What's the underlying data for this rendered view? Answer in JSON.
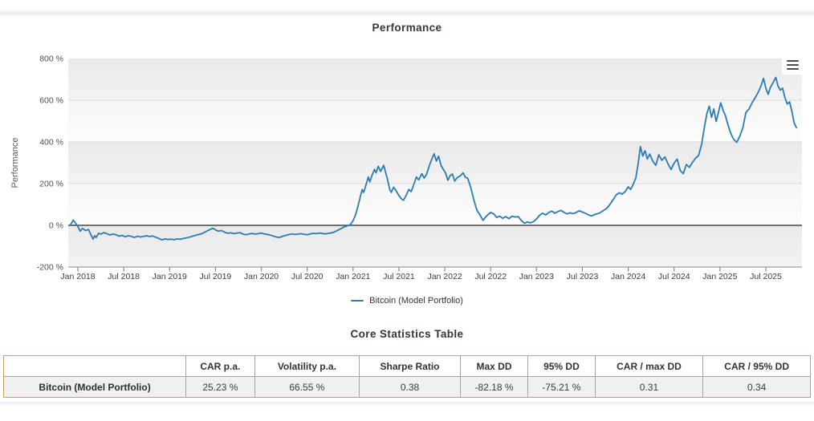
{
  "page": {
    "chart_title": "Performance",
    "table_title": "Core Statistics Table"
  },
  "chart": {
    "y_axis_title": "Performance",
    "legend": [
      {
        "label": "Bitcoin (Model Portfolio)",
        "color": "#2b7cb5"
      }
    ],
    "colors": {
      "line": "#2b7cb5",
      "band_dark_top": "#e9e9e9",
      "band_dark_bottom": "#f3f3f3",
      "band_light_top": "#f6f6f6",
      "band_light_bottom": "#fcfcfc",
      "grid": "#d9d9d9",
      "zero_line": "#454545",
      "axis_line": "#a0a0a0",
      "tick": "#8a8a8a",
      "label": "#4d4d4d"
    }
  },
  "chart_data": {
    "type": "line",
    "title": "Performance",
    "xlabel": "",
    "ylabel": "Performance",
    "ylim": [
      -200,
      800
    ],
    "grid": true,
    "legend_position": "bottom-center",
    "y_ticks": [
      {
        "value": 800,
        "label": "800 %"
      },
      {
        "value": 600,
        "label": "600 %"
      },
      {
        "value": 400,
        "label": "400 %"
      },
      {
        "value": 200,
        "label": "200 %"
      },
      {
        "value": 0,
        "label": "0 %"
      },
      {
        "value": -200,
        "label": "-200 %"
      }
    ],
    "x_ticks": [
      {
        "t": 1,
        "label": "Jan 2018"
      },
      {
        "t": 7,
        "label": "Jul 2018"
      },
      {
        "t": 13,
        "label": "Jan 2019"
      },
      {
        "t": 19,
        "label": "Jul 2019"
      },
      {
        "t": 25,
        "label": "Jan 2020"
      },
      {
        "t": 31,
        "label": "Jul 2020"
      },
      {
        "t": 37,
        "label": "Jan 2021"
      },
      {
        "t": 43,
        "label": "Jul 2021"
      },
      {
        "t": 49,
        "label": "Jan 2022"
      },
      {
        "t": 55,
        "label": "Jul 2022"
      },
      {
        "t": 61,
        "label": "Jan 2023"
      },
      {
        "t": 67,
        "label": "Jul 2023"
      },
      {
        "t": 73,
        "label": "Jan 2024"
      },
      {
        "t": 79,
        "label": "Jul 2024"
      },
      {
        "t": 85,
        "label": "Jan 2025"
      },
      {
        "t": 91,
        "label": "Jul 2025"
      }
    ],
    "series": [
      {
        "name": "Bitcoin (Model Portfolio)",
        "color": "#2b7cb5",
        "points": [
          [
            0,
            0
          ],
          [
            0.4,
            25
          ],
          [
            0.7,
            10
          ],
          [
            1,
            -5
          ],
          [
            1.3,
            -28
          ],
          [
            1.6,
            -15
          ],
          [
            2,
            -25
          ],
          [
            2.4,
            -20
          ],
          [
            2.7,
            -45
          ],
          [
            3,
            -66
          ],
          [
            3.2,
            -50
          ],
          [
            3.4,
            -58
          ],
          [
            3.7,
            -38
          ],
          [
            4,
            -42
          ],
          [
            4.4,
            -35
          ],
          [
            4.8,
            -40
          ],
          [
            5.2,
            -46
          ],
          [
            5.6,
            -42
          ],
          [
            6,
            -45
          ],
          [
            6.4,
            -52
          ],
          [
            6.8,
            -48
          ],
          [
            7.2,
            -55
          ],
          [
            7.6,
            -50
          ],
          [
            8,
            -53
          ],
          [
            8.4,
            -58
          ],
          [
            8.8,
            -52
          ],
          [
            9.2,
            -56
          ],
          [
            9.6,
            -53
          ],
          [
            10,
            -50
          ],
          [
            10.4,
            -54
          ],
          [
            10.8,
            -51
          ],
          [
            11.2,
            -57
          ],
          [
            11.6,
            -63
          ],
          [
            12,
            -70
          ],
          [
            12.4,
            -65
          ],
          [
            12.8,
            -68
          ],
          [
            13.2,
            -66
          ],
          [
            13.6,
            -69
          ],
          [
            14,
            -65
          ],
          [
            14.4,
            -67
          ],
          [
            14.8,
            -63
          ],
          [
            15.2,
            -60
          ],
          [
            15.6,
            -57
          ],
          [
            16,
            -52
          ],
          [
            16.4,
            -48
          ],
          [
            16.8,
            -44
          ],
          [
            17.2,
            -40
          ],
          [
            17.6,
            -33
          ],
          [
            18,
            -25
          ],
          [
            18.4,
            -18
          ],
          [
            18.7,
            -14
          ],
          [
            19,
            -22
          ],
          [
            19.4,
            -28
          ],
          [
            19.8,
            -25
          ],
          [
            20.2,
            -33
          ],
          [
            20.6,
            -38
          ],
          [
            21,
            -36
          ],
          [
            21.4,
            -40
          ],
          [
            21.8,
            -37
          ],
          [
            22.2,
            -35
          ],
          [
            22.6,
            -42
          ],
          [
            23,
            -45
          ],
          [
            23.4,
            -41
          ],
          [
            23.8,
            -39
          ],
          [
            24.2,
            -42
          ],
          [
            24.6,
            -40
          ],
          [
            25,
            -37
          ],
          [
            25.4,
            -41
          ],
          [
            25.8,
            -44
          ],
          [
            26.2,
            -47
          ],
          [
            26.6,
            -52
          ],
          [
            27,
            -56
          ],
          [
            27.4,
            -58
          ],
          [
            27.8,
            -52
          ],
          [
            28.2,
            -48
          ],
          [
            28.6,
            -44
          ],
          [
            29,
            -41
          ],
          [
            29.4,
            -44
          ],
          [
            29.8,
            -42
          ],
          [
            30.2,
            -40
          ],
          [
            30.6,
            -43
          ],
          [
            31,
            -45
          ],
          [
            31.4,
            -41
          ],
          [
            31.8,
            -38
          ],
          [
            32.2,
            -40
          ],
          [
            32.6,
            -37
          ],
          [
            33,
            -39
          ],
          [
            33.4,
            -41
          ],
          [
            33.8,
            -38
          ],
          [
            34.2,
            -36
          ],
          [
            34.6,
            -31
          ],
          [
            35,
            -24
          ],
          [
            35.4,
            -16
          ],
          [
            35.8,
            -8
          ],
          [
            36.2,
            -3
          ],
          [
            36.6,
            2
          ],
          [
            37,
            22
          ],
          [
            37.3,
            48
          ],
          [
            37.6,
            85
          ],
          [
            38,
            145
          ],
          [
            38.2,
            172
          ],
          [
            38.4,
            158
          ],
          [
            38.7,
            195
          ],
          [
            39,
            232
          ],
          [
            39.2,
            208
          ],
          [
            39.5,
            242
          ],
          [
            39.8,
            268
          ],
          [
            40,
            252
          ],
          [
            40.3,
            283
          ],
          [
            40.6,
            258
          ],
          [
            41,
            288
          ],
          [
            41.2,
            262
          ],
          [
            41.5,
            222
          ],
          [
            41.8,
            172
          ],
          [
            42,
            158
          ],
          [
            42.3,
            183
          ],
          [
            42.6,
            168
          ],
          [
            43,
            143
          ],
          [
            43.3,
            128
          ],
          [
            43.6,
            120
          ],
          [
            44,
            148
          ],
          [
            44.3,
            172
          ],
          [
            44.6,
            162
          ],
          [
            45,
            202
          ],
          [
            45.3,
            232
          ],
          [
            45.6,
            218
          ],
          [
            46,
            248
          ],
          [
            46.3,
            226
          ],
          [
            46.6,
            243
          ],
          [
            47,
            288
          ],
          [
            47.3,
            318
          ],
          [
            47.6,
            343
          ],
          [
            47.9,
            308
          ],
          [
            48.2,
            332
          ],
          [
            48.5,
            288
          ],
          [
            48.8,
            268
          ],
          [
            49.1,
            252
          ],
          [
            49.4,
            216
          ],
          [
            49.7,
            238
          ],
          [
            50,
            246
          ],
          [
            50.3,
            212
          ],
          [
            50.6,
            228
          ],
          [
            51,
            236
          ],
          [
            51.4,
            252
          ],
          [
            51.7,
            230
          ],
          [
            52,
            226
          ],
          [
            52.4,
            182
          ],
          [
            52.8,
            122
          ],
          [
            53.2,
            72
          ],
          [
            53.6,
            50
          ],
          [
            54,
            24
          ],
          [
            54.3,
            38
          ],
          [
            54.6,
            50
          ],
          [
            55,
            62
          ],
          [
            55.4,
            55
          ],
          [
            55.8,
            38
          ],
          [
            56.2,
            44
          ],
          [
            56.6,
            34
          ],
          [
            57,
            42
          ],
          [
            57.4,
            32
          ],
          [
            57.8,
            44
          ],
          [
            58.2,
            40
          ],
          [
            58.6,
            42
          ],
          [
            59,
            24
          ],
          [
            59.4,
            10
          ],
          [
            59.8,
            16
          ],
          [
            60.2,
            12
          ],
          [
            60.6,
            18
          ],
          [
            61,
            30
          ],
          [
            61.4,
            48
          ],
          [
            61.8,
            58
          ],
          [
            62.2,
            50
          ],
          [
            62.6,
            62
          ],
          [
            63,
            68
          ],
          [
            63.4,
            58
          ],
          [
            63.8,
            66
          ],
          [
            64.2,
            72
          ],
          [
            64.6,
            62
          ],
          [
            65,
            55
          ],
          [
            65.4,
            60
          ],
          [
            65.8,
            56
          ],
          [
            66.2,
            62
          ],
          [
            66.6,
            70
          ],
          [
            67,
            64
          ],
          [
            67.4,
            58
          ],
          [
            67.8,
            50
          ],
          [
            68.2,
            45
          ],
          [
            68.6,
            52
          ],
          [
            69,
            56
          ],
          [
            69.4,
            62
          ],
          [
            69.8,
            72
          ],
          [
            70.2,
            82
          ],
          [
            70.6,
            100
          ],
          [
            71,
            122
          ],
          [
            71.4,
            145
          ],
          [
            71.8,
            156
          ],
          [
            72.2,
            150
          ],
          [
            72.6,
            162
          ],
          [
            73,
            185
          ],
          [
            73.3,
            172
          ],
          [
            73.6,
            192
          ],
          [
            74,
            228
          ],
          [
            74.3,
            298
          ],
          [
            74.6,
            378
          ],
          [
            74.9,
            332
          ],
          [
            75.2,
            358
          ],
          [
            75.5,
            318
          ],
          [
            75.8,
            342
          ],
          [
            76.2,
            308
          ],
          [
            76.6,
            288
          ],
          [
            77,
            338
          ],
          [
            77.4,
            312
          ],
          [
            77.8,
            328
          ],
          [
            78.2,
            295
          ],
          [
            78.6,
            268
          ],
          [
            79,
            298
          ],
          [
            79.4,
            318
          ],
          [
            79.8,
            262
          ],
          [
            80.2,
            248
          ],
          [
            80.6,
            292
          ],
          [
            81,
            278
          ],
          [
            81.4,
            302
          ],
          [
            81.8,
            322
          ],
          [
            82.2,
            335
          ],
          [
            82.6,
            388
          ],
          [
            83,
            478
          ],
          [
            83.3,
            538
          ],
          [
            83.6,
            572
          ],
          [
            83.9,
            518
          ],
          [
            84.2,
            558
          ],
          [
            84.5,
            498
          ],
          [
            84.8,
            542
          ],
          [
            85.1,
            588
          ],
          [
            85.4,
            552
          ],
          [
            85.7,
            528
          ],
          [
            86,
            488
          ],
          [
            86.4,
            442
          ],
          [
            86.8,
            412
          ],
          [
            87.2,
            398
          ],
          [
            87.6,
            428
          ],
          [
            88,
            468
          ],
          [
            88.4,
            542
          ],
          [
            88.8,
            558
          ],
          [
            89.2,
            588
          ],
          [
            89.6,
            612
          ],
          [
            90,
            638
          ],
          [
            90.4,
            672
          ],
          [
            90.7,
            705
          ],
          [
            91,
            658
          ],
          [
            91.3,
            628
          ],
          [
            91.6,
            662
          ],
          [
            92,
            688
          ],
          [
            92.3,
            710
          ],
          [
            92.6,
            668
          ],
          [
            92.9,
            648
          ],
          [
            93.2,
            658
          ],
          [
            93.5,
            612
          ],
          [
            93.8,
            582
          ],
          [
            94.1,
            592
          ],
          [
            94.4,
            548
          ],
          [
            94.7,
            492
          ],
          [
            95,
            468
          ]
        ]
      }
    ]
  },
  "stats_table": {
    "columns": [
      "",
      "CAR p.a.",
      "Volatility p.a.",
      "Sharpe Ratio",
      "Max DD",
      "95% DD",
      "CAR / max DD",
      "CAR / 95% DD"
    ],
    "rows": [
      {
        "name": "Bitcoin (Model Portfolio)",
        "values": [
          "25.23 %",
          "66.55 %",
          "0.38",
          "-82.18 %",
          "-75.21 %",
          "0.31",
          "0.34"
        ]
      }
    ],
    "border_color": "#c5a065"
  }
}
